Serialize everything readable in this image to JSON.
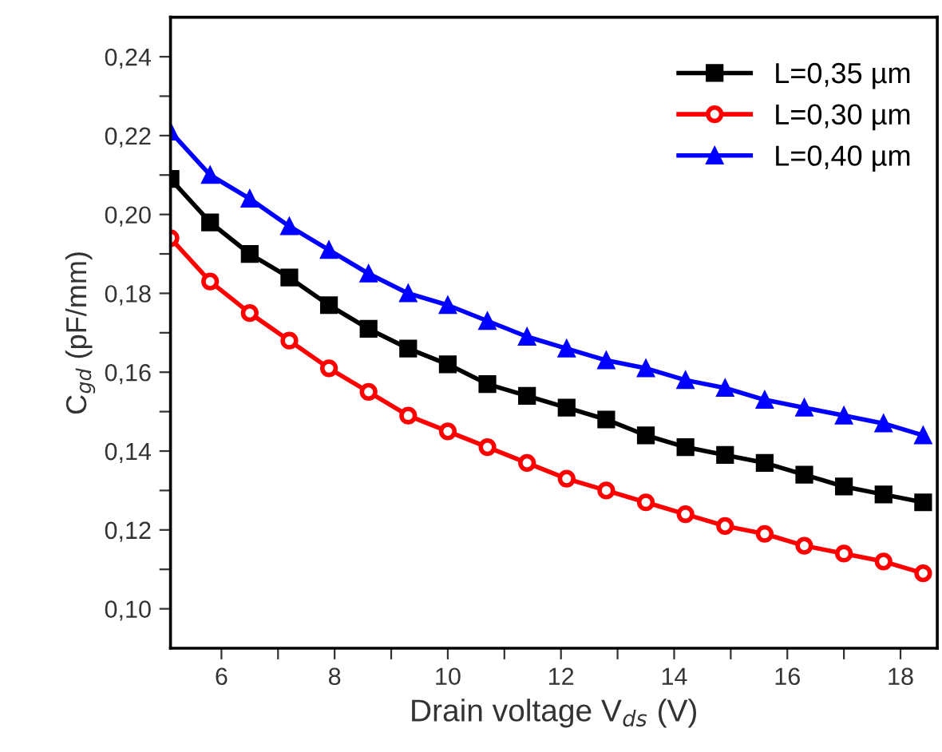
{
  "chart_data": {
    "type": "line",
    "xlabel": "Drain voltage V$_{ds}$ (V)",
    "ylabel": "C$_{gd}$ (pF/mm)",
    "x": [
      5.1,
      5.8,
      6.5,
      7.2,
      7.9,
      8.6,
      9.3,
      10.0,
      10.7,
      11.4,
      12.1,
      12.8,
      13.5,
      14.2,
      14.9,
      15.6,
      16.3,
      17.0,
      17.7,
      18.4
    ],
    "series": [
      {
        "name": "L=0,35 µm",
        "color": "#000000",
        "marker": "square",
        "values": [
          0.209,
          0.198,
          0.19,
          0.184,
          0.177,
          0.171,
          0.166,
          0.162,
          0.157,
          0.154,
          0.151,
          0.148,
          0.144,
          0.141,
          0.139,
          0.137,
          0.134,
          0.131,
          0.129,
          0.127
        ]
      },
      {
        "name": "L=0,30 µm",
        "color": "#ff0000",
        "marker": "circle",
        "values": [
          0.194,
          0.183,
          0.175,
          0.168,
          0.161,
          0.155,
          0.149,
          0.145,
          0.141,
          0.137,
          0.133,
          0.13,
          0.127,
          0.124,
          0.121,
          0.119,
          0.116,
          0.114,
          0.112,
          0.109
        ]
      },
      {
        "name": "L=0,40 µm",
        "color": "#0000ff",
        "marker": "triangle",
        "values": [
          0.221,
          0.21,
          0.204,
          0.197,
          0.191,
          0.185,
          0.18,
          0.177,
          0.173,
          0.169,
          0.166,
          0.163,
          0.161,
          0.158,
          0.156,
          0.153,
          0.151,
          0.149,
          0.147,
          0.144
        ]
      }
    ],
    "xlim": [
      5.1,
      18.65
    ],
    "ylim": [
      0.09,
      0.25
    ],
    "xticks": [
      6,
      {
        "value": 7,
        "label": null
      },
      8,
      {
        "value": 9,
        "label": null
      },
      10,
      {
        "value": 11,
        "label": null
      },
      12,
      {
        "value": 13,
        "label": null
      },
      14,
      {
        "value": 15,
        "label": null
      },
      16,
      {
        "value": 17,
        "label": null
      },
      18
    ],
    "yticks": [
      {
        "value": 0.1,
        "label": "0,10"
      },
      {
        "value": 0.11,
        "label": null
      },
      {
        "value": 0.12,
        "label": "0,12"
      },
      {
        "value": 0.13,
        "label": null
      },
      {
        "value": 0.14,
        "label": "0,14"
      },
      {
        "value": 0.15,
        "label": null
      },
      {
        "value": 0.16,
        "label": "0,16"
      },
      {
        "value": 0.17,
        "label": null
      },
      {
        "value": 0.18,
        "label": "0,18"
      },
      {
        "value": 0.19,
        "label": null
      },
      {
        "value": 0.2,
        "label": "0,20"
      },
      {
        "value": 0.21,
        "label": null
      },
      {
        "value": 0.22,
        "label": "0,22"
      },
      {
        "value": 0.23,
        "label": null
      },
      {
        "value": 0.24,
        "label": "0,24"
      }
    ],
    "line_style": "solid",
    "legend": "top right",
    "grid": false
  }
}
